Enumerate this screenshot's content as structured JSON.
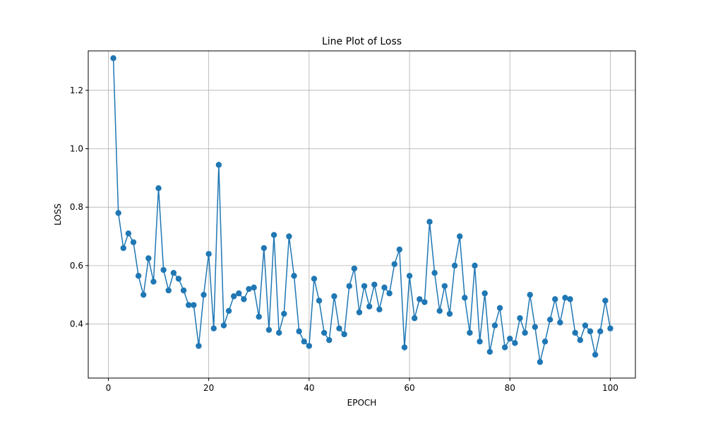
{
  "chart_data": {
    "type": "line",
    "title": "Line Plot of Loss",
    "xlabel": "EPOCH",
    "ylabel": "LOSS",
    "xlim": [
      -4,
      105
    ],
    "ylim": [
      0.215,
      1.335
    ],
    "xticks": [
      0,
      20,
      40,
      60,
      80,
      100
    ],
    "yticks": [
      0.4,
      0.6,
      0.8,
      1.0,
      1.2
    ],
    "ytick_labels": [
      "0.4",
      "0.6",
      "0.8",
      "1.0",
      "1.2"
    ],
    "grid": true,
    "marker": "circle",
    "color": "#1f77b4",
    "series": [
      {
        "x": [
          1,
          2,
          3,
          4,
          5,
          6,
          7,
          8,
          9,
          10,
          11,
          12,
          13,
          14,
          15,
          16,
          17,
          18,
          19,
          20,
          21,
          22,
          23,
          24,
          25,
          26,
          27,
          28,
          29,
          30,
          31,
          32,
          33,
          34,
          35,
          36,
          37,
          38,
          39,
          40,
          41,
          42,
          43,
          44,
          45,
          46,
          47,
          48,
          49,
          50,
          51,
          52,
          53,
          54,
          55,
          56,
          57,
          58,
          59,
          60,
          61,
          62,
          63,
          64,
          65,
          66,
          67,
          68,
          69,
          70,
          71,
          72,
          73,
          74,
          75,
          76,
          77,
          78,
          79,
          80,
          81,
          82,
          83,
          84,
          85,
          86,
          87,
          88,
          89,
          90,
          91,
          92,
          93,
          94,
          95,
          96,
          97,
          98,
          99,
          100
        ],
        "values": [
          1.31,
          0.78,
          0.66,
          0.71,
          0.68,
          0.565,
          0.5,
          0.625,
          0.545,
          0.865,
          0.585,
          0.515,
          0.575,
          0.555,
          0.515,
          0.465,
          0.465,
          0.325,
          0.5,
          0.64,
          0.385,
          0.945,
          0.395,
          0.445,
          0.495,
          0.505,
          0.485,
          0.52,
          0.525,
          0.425,
          0.66,
          0.38,
          0.705,
          0.37,
          0.435,
          0.7,
          0.565,
          0.375,
          0.34,
          0.325,
          0.555,
          0.48,
          0.37,
          0.345,
          0.495,
          0.385,
          0.365,
          0.53,
          0.59,
          0.44,
          0.53,
          0.46,
          0.535,
          0.45,
          0.525,
          0.505,
          0.605,
          0.655,
          0.32,
          0.565,
          0.42,
          0.485,
          0.475,
          0.75,
          0.575,
          0.445,
          0.53,
          0.435,
          0.6,
          0.7,
          0.49,
          0.37,
          0.6,
          0.34,
          0.505,
          0.305,
          0.395,
          0.455,
          0.32,
          0.35,
          0.335,
          0.42,
          0.37,
          0.5,
          0.39,
          0.27,
          0.34,
          0.415,
          0.485,
          0.405,
          0.49,
          0.485,
          0.37,
          0.345,
          0.395,
          0.375,
          0.295,
          0.375,
          0.48,
          0.385
        ]
      }
    ]
  }
}
